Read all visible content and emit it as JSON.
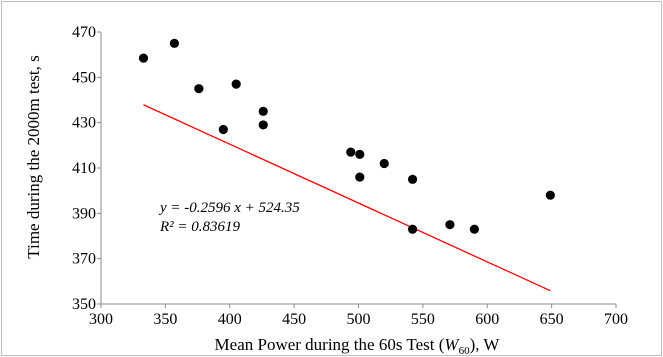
{
  "chart_data": {
    "type": "scatter",
    "xlabel_parts": {
      "before": "Mean Power during the 60s Test (",
      "symbol": "W",
      "subscript": "60",
      "after": "), W"
    },
    "ylabel": "Time during the 2000m test, s",
    "xlim": [
      300,
      700
    ],
    "ylim": [
      350,
      470
    ],
    "x_ticks": [
      300,
      350,
      400,
      450,
      500,
      550,
      600,
      650,
      700
    ],
    "y_ticks": [
      350,
      370,
      390,
      410,
      430,
      450,
      470
    ],
    "grid": false,
    "legend": "none",
    "colors": {
      "points": "#000000",
      "trendline": "#ff0000",
      "frame": "#bfbfbf",
      "axis": "#8c8c8c"
    },
    "points": [
      {
        "x": 333,
        "y": 458.5
      },
      {
        "x": 357,
        "y": 465
      },
      {
        "x": 376,
        "y": 445
      },
      {
        "x": 395,
        "y": 427
      },
      {
        "x": 405,
        "y": 447
      },
      {
        "x": 426,
        "y": 435
      },
      {
        "x": 426,
        "y": 429
      },
      {
        "x": 494,
        "y": 417
      },
      {
        "x": 501,
        "y": 416
      },
      {
        "x": 501,
        "y": 406
      },
      {
        "x": 520,
        "y": 412
      },
      {
        "x": 542,
        "y": 405
      },
      {
        "x": 542,
        "y": 383
      },
      {
        "x": 571,
        "y": 385
      },
      {
        "x": 590,
        "y": 383
      },
      {
        "x": 649,
        "y": 398
      }
    ],
    "trendline": {
      "slope": -0.2596,
      "intercept": 524.35,
      "x_range": [
        333,
        649
      ],
      "equation_label": "y = -0.2596 x + 524.35",
      "r2_label": "R² = 0.83619"
    }
  }
}
